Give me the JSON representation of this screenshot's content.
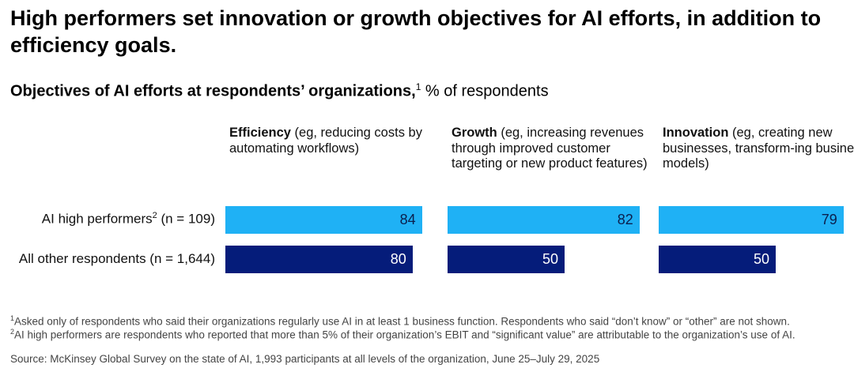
{
  "colors": {
    "high": "#1fb1f5",
    "other": "#051c7a"
  },
  "chart_data": {
    "type": "bar",
    "title": "High performers set innovation or growth objectives for AI efforts, in addition to efficiency goals.",
    "subtitle_bold": "Objectives of AI efforts at respondents’ organizations,",
    "subtitle_sup": "1",
    "subtitle_rest": " % of respondents",
    "categories": [
      {
        "bold": "Efficiency",
        "rest": " (eg, reducing costs by automating workflows)"
      },
      {
        "bold": "Growth",
        "rest": " (eg, increasing revenues through improved customer targeting or new product features)"
      },
      {
        "bold": "Innovation",
        "rest": " (eg, creating new businesses, transform-ing business models)"
      }
    ],
    "series": [
      {
        "name": "AI high performers",
        "sup": "2",
        "suffix": " (n = 109)",
        "values": [
          84,
          82,
          79
        ]
      },
      {
        "name": "All other respondents (n = 1,644)",
        "values": [
          80,
          50,
          50
        ]
      }
    ],
    "ylim": [
      0,
      100
    ]
  },
  "footnotes": {
    "n1_sup": "1",
    "n1": "Asked only of respondents who said their organizations regularly use AI in at least 1 business function. Respondents who said “don’t know” or “other” are not shown.",
    "n2_sup": "2",
    "n2": "AI high performers are respondents who reported that more than 5% of their organization’s EBIT and “significant value” are attributable to the organization’s use of AI.",
    "source": "Source: McKinsey Global Survey on the state of AI, 1,993 participants at all levels of the organization, June 25–July 29, 2025"
  }
}
